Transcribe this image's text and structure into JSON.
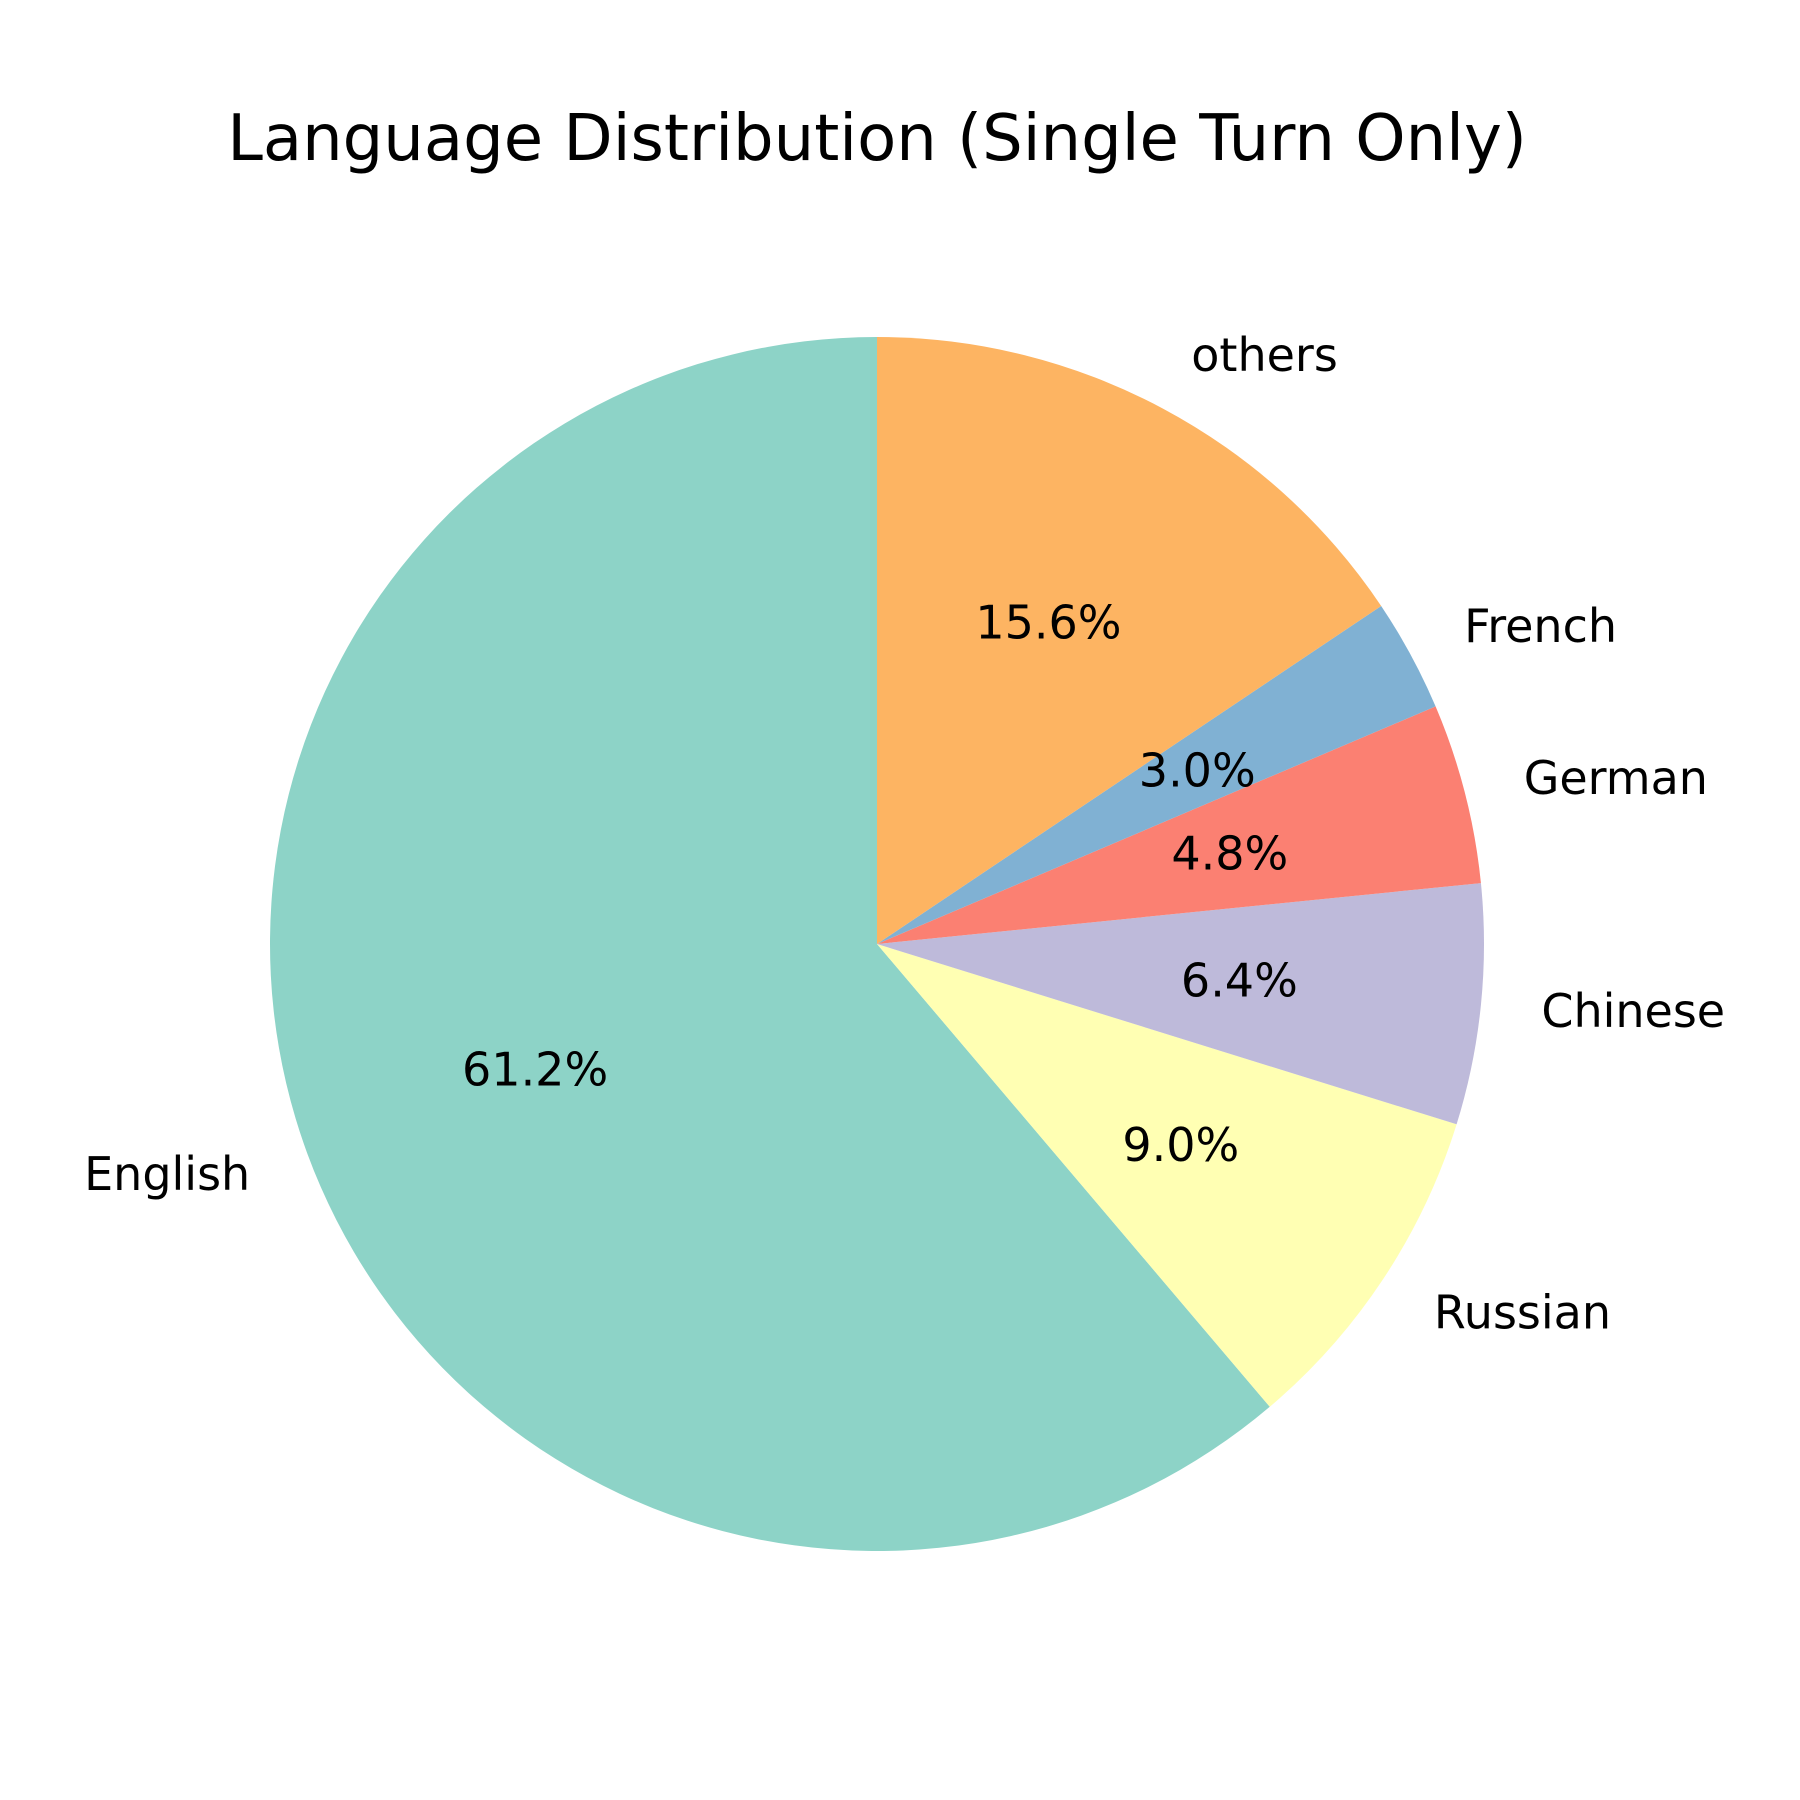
{
  "chart_data": {
    "type": "pie",
    "title": "Language Distribution (Single Turn Only)",
    "start_angle_deg": 90,
    "direction": "counterclockwise",
    "slices": [
      {
        "label": "English",
        "value": 61.2,
        "pct_label": "61.2%",
        "color": "#8dd3c7"
      },
      {
        "label": "Russian",
        "value": 9.0,
        "pct_label": "9.0%",
        "color": "#ffffb3"
      },
      {
        "label": "Chinese",
        "value": 6.4,
        "pct_label": "6.4%",
        "color": "#bebada"
      },
      {
        "label": "German",
        "value": 4.8,
        "pct_label": "4.8%",
        "color": "#fb8072"
      },
      {
        "label": "French",
        "value": 3.0,
        "pct_label": "3.0%",
        "color": "#80b1d3"
      },
      {
        "label": "others",
        "value": 15.6,
        "pct_label": "15.6%",
        "color": "#fdb462"
      }
    ]
  }
}
